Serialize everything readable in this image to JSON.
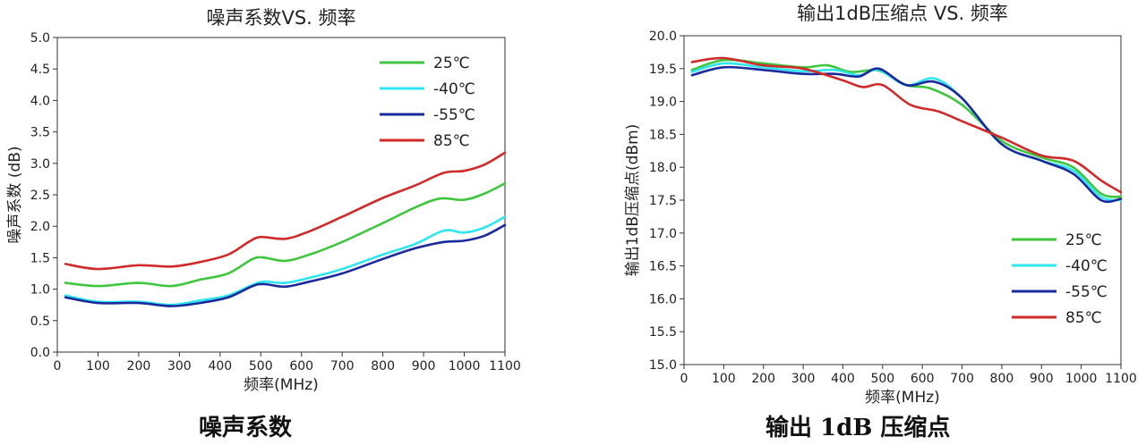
{
  "chart_data": [
    {
      "type": "line",
      "title": "噪声系数VS. 频率",
      "xlabel": "频率(MHz)",
      "ylabel": "噪声系数 (dB)",
      "caption": "噪声系数",
      "xlim": [
        0,
        1100
      ],
      "ylim": [
        0,
        5
      ],
      "x_ticks": [
        0,
        100,
        200,
        300,
        400,
        500,
        600,
        700,
        800,
        900,
        1000,
        1100
      ],
      "y_ticks": [
        "0.0",
        "0.5",
        "1.0",
        "1.5",
        "2.0",
        "2.5",
        "3.0",
        "3.5",
        "4.0",
        "4.5",
        "5.0"
      ],
      "grid": false,
      "legend_position": "top-right",
      "series": [
        {
          "name": "25℃",
          "color": "#3ec63e",
          "x": [
            20,
            100,
            200,
            280,
            350,
            420,
            480,
            510,
            560,
            620,
            700,
            800,
            880,
            940,
            1000,
            1050,
            1100
          ],
          "y": [
            1.1,
            1.05,
            1.1,
            1.05,
            1.15,
            1.25,
            1.48,
            1.5,
            1.45,
            1.55,
            1.75,
            2.05,
            2.3,
            2.44,
            2.42,
            2.52,
            2.68
          ]
        },
        {
          "name": "-40℃",
          "color": "#2ee6ee",
          "x": [
            20,
            100,
            200,
            280,
            350,
            420,
            480,
            510,
            560,
            620,
            700,
            800,
            880,
            950,
            1000,
            1050,
            1100
          ],
          "y": [
            0.9,
            0.8,
            0.8,
            0.75,
            0.82,
            0.9,
            1.07,
            1.12,
            1.1,
            1.18,
            1.32,
            1.55,
            1.72,
            1.93,
            1.9,
            1.98,
            2.15
          ]
        },
        {
          "name": "-55℃",
          "color": "#1a2a9c",
          "x": [
            20,
            100,
            200,
            280,
            350,
            420,
            480,
            510,
            560,
            620,
            700,
            800,
            880,
            950,
            1000,
            1050,
            1100
          ],
          "y": [
            0.87,
            0.78,
            0.78,
            0.73,
            0.78,
            0.87,
            1.05,
            1.08,
            1.04,
            1.12,
            1.25,
            1.48,
            1.65,
            1.75,
            1.77,
            1.85,
            2.02
          ]
        },
        {
          "name": "85℃",
          "color": "#d02a2a",
          "x": [
            20,
            100,
            200,
            280,
            350,
            420,
            470,
            500,
            560,
            620,
            700,
            800,
            880,
            950,
            1000,
            1050,
            1100
          ],
          "y": [
            1.4,
            1.32,
            1.38,
            1.36,
            1.43,
            1.55,
            1.75,
            1.83,
            1.8,
            1.92,
            2.15,
            2.45,
            2.65,
            2.85,
            2.88,
            2.98,
            3.17
          ]
        }
      ]
    },
    {
      "type": "line",
      "title": "输出1dB压缩点 VS. 频率",
      "xlabel": "频率(MHz)",
      "ylabel": "输出1dB压缩点(dBm)",
      "caption": "输出 1dB 压缩点",
      "xlim": [
        0,
        1100
      ],
      "ylim": [
        15,
        20
      ],
      "x_ticks": [
        0,
        100,
        200,
        300,
        400,
        500,
        600,
        700,
        800,
        900,
        1000,
        1100
      ],
      "y_ticks": [
        "15.0",
        "15.5",
        "16.0",
        "16.5",
        "17.0",
        "17.5",
        "18.0",
        "18.5",
        "19.0",
        "19.5",
        "20.0"
      ],
      "grid": false,
      "legend_position": "bottom-right",
      "series": [
        {
          "name": "25℃",
          "color": "#3ec63e",
          "x": [
            20,
            100,
            200,
            300,
            360,
            420,
            490,
            560,
            620,
            700,
            800,
            900,
            980,
            1050,
            1100
          ],
          "y": [
            19.48,
            19.63,
            19.58,
            19.52,
            19.55,
            19.45,
            19.47,
            19.25,
            19.2,
            18.95,
            18.4,
            18.15,
            18.0,
            17.6,
            17.55
          ]
        },
        {
          "name": "-40℃",
          "color": "#2ee6ee",
          "x": [
            20,
            100,
            200,
            300,
            380,
            440,
            490,
            560,
            630,
            700,
            800,
            900,
            980,
            1050,
            1100
          ],
          "y": [
            19.45,
            19.58,
            19.52,
            19.46,
            19.48,
            19.4,
            19.48,
            19.25,
            19.35,
            19.05,
            18.35,
            18.1,
            17.95,
            17.55,
            17.5
          ]
        },
        {
          "name": "-55℃",
          "color": "#1a2a9c",
          "x": [
            20,
            100,
            200,
            300,
            380,
            440,
            490,
            560,
            630,
            700,
            800,
            900,
            980,
            1050,
            1100
          ],
          "y": [
            19.4,
            19.52,
            19.48,
            19.42,
            19.42,
            19.38,
            19.5,
            19.25,
            19.3,
            19.05,
            18.35,
            18.1,
            17.9,
            17.5,
            17.52
          ]
        },
        {
          "name": "85℃",
          "color": "#d02a2a",
          "x": [
            20,
            100,
            200,
            300,
            400,
            450,
            500,
            570,
            640,
            700,
            800,
            900,
            980,
            1050,
            1100
          ],
          "y": [
            19.6,
            19.66,
            19.55,
            19.5,
            19.32,
            19.22,
            19.25,
            18.95,
            18.85,
            18.7,
            18.45,
            18.18,
            18.1,
            17.8,
            17.62
          ]
        }
      ]
    }
  ]
}
